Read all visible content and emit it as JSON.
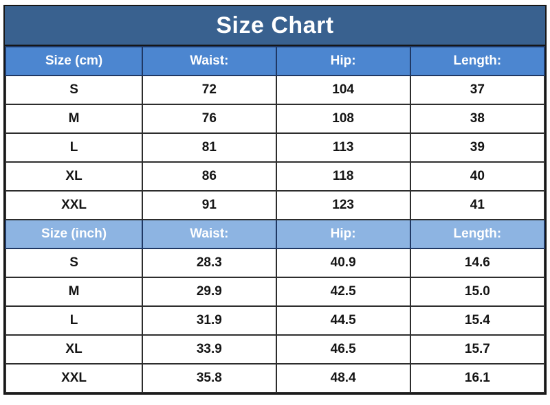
{
  "title": "Size Chart",
  "colors": {
    "title_bar_bg": "#39618F",
    "header_cm_bg": "#4C86D0",
    "header_inch_bg": "#8DB4E2",
    "grid_line": "#2d2d2d",
    "header_text": "#ffffff",
    "cell_text": "#141414"
  },
  "sections": [
    {
      "header": {
        "size_label": "Size (cm)",
        "columns": [
          "Waist:",
          "Hip:",
          "Length:"
        ]
      },
      "rows": [
        {
          "size": "S",
          "values": [
            "72",
            "104",
            "37"
          ]
        },
        {
          "size": "M",
          "values": [
            "76",
            "108",
            "38"
          ]
        },
        {
          "size": "L",
          "values": [
            "81",
            "113",
            "39"
          ]
        },
        {
          "size": "XL",
          "values": [
            "86",
            "118",
            "40"
          ]
        },
        {
          "size": "XXL",
          "values": [
            "91",
            "123",
            "41"
          ]
        }
      ]
    },
    {
      "header": {
        "size_label": "Size (inch)",
        "columns": [
          "Waist:",
          "Hip:",
          "Length:"
        ]
      },
      "rows": [
        {
          "size": "S",
          "values": [
            "28.3",
            "40.9",
            "14.6"
          ]
        },
        {
          "size": "M",
          "values": [
            "29.9",
            "42.5",
            "15.0"
          ]
        },
        {
          "size": "L",
          "values": [
            "31.9",
            "44.5",
            "15.4"
          ]
        },
        {
          "size": "XL",
          "values": [
            "33.9",
            "46.5",
            "15.7"
          ]
        },
        {
          "size": "XXL",
          "values": [
            "35.8",
            "48.4",
            "16.1"
          ]
        }
      ]
    }
  ],
  "chart_data": {
    "type": "table",
    "title": "Size Chart",
    "sections": [
      {
        "unit": "cm",
        "columns": [
          "Size (cm)",
          "Waist:",
          "Hip:",
          "Length:"
        ],
        "rows": [
          [
            "S",
            72,
            104,
            37
          ],
          [
            "M",
            76,
            108,
            38
          ],
          [
            "L",
            81,
            113,
            39
          ],
          [
            "XL",
            86,
            118,
            40
          ],
          [
            "XXL",
            91,
            123,
            41
          ]
        ]
      },
      {
        "unit": "inch",
        "columns": [
          "Size (inch)",
          "Waist:",
          "Hip:",
          "Length:"
        ],
        "rows": [
          [
            "S",
            28.3,
            40.9,
            14.6
          ],
          [
            "M",
            29.9,
            42.5,
            15.0
          ],
          [
            "L",
            31.9,
            44.5,
            15.4
          ],
          [
            "XL",
            33.9,
            46.5,
            15.7
          ],
          [
            "XXL",
            35.8,
            48.4,
            16.1
          ]
        ]
      }
    ]
  }
}
